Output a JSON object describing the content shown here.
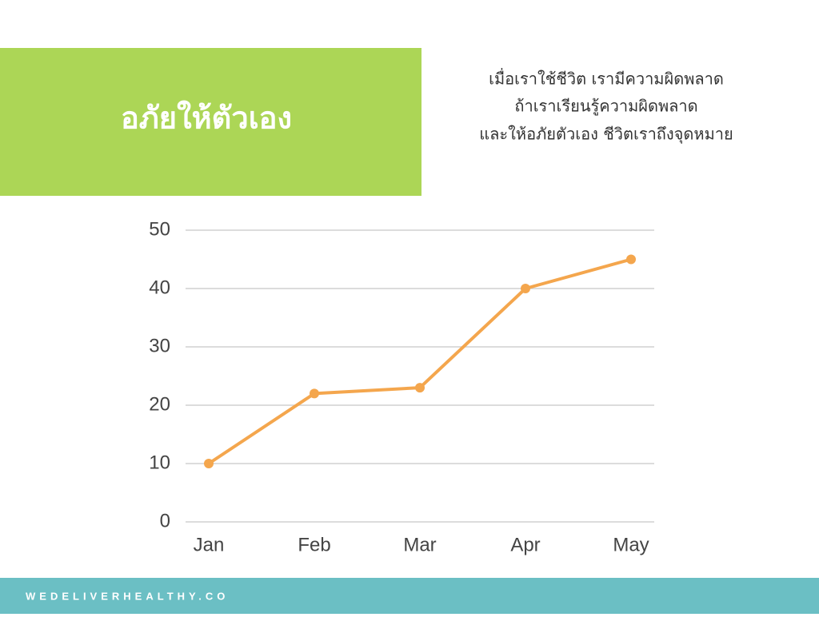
{
  "header": {
    "title": "อภัยให้ตัวเอง",
    "quote": [
      "เมื่อเราใช้ชีวิต เรามีความผิดพลาด",
      "ถ้าเราเรียนรู้ความผิดพลาด",
      "และให้อภัยตัวเอง ชีวิตเราถึงจุดหมาย"
    ]
  },
  "footer": {
    "text": "WEDELIVERHEALTHY.CO"
  },
  "chart_data": {
    "type": "line",
    "categories": [
      "Jan",
      "Feb",
      "Mar",
      "Apr",
      "May"
    ],
    "values": [
      10,
      22,
      23,
      40,
      45
    ],
    "color": "#f4a64d",
    "ylim": [
      0,
      50
    ],
    "yticks": [
      0,
      10,
      20,
      30,
      40,
      50
    ],
    "grid": true
  }
}
